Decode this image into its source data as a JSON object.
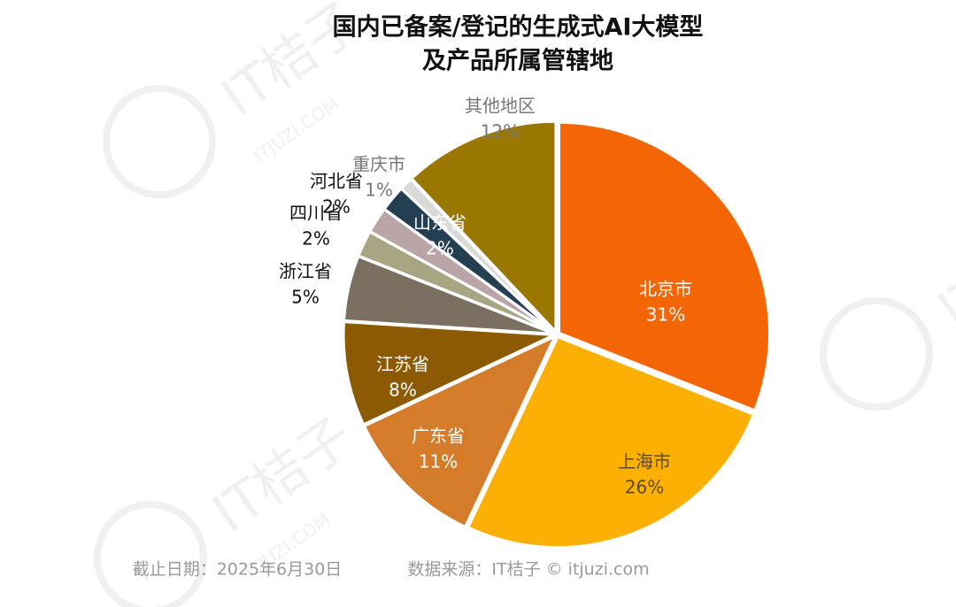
{
  "chart_data": {
    "type": "pie",
    "title": [
      "国内已备案/登记的生成式AI大模型",
      "及产品所属管辖地"
    ],
    "categories": [
      "北京市",
      "上海市",
      "广东省",
      "江苏省",
      "浙江省",
      "四川省",
      "山东省",
      "河北省",
      "重庆市",
      "其他地区"
    ],
    "values": [
      31,
      26,
      11,
      8,
      5,
      2,
      2,
      2,
      1,
      12
    ],
    "value_labels": [
      "31%",
      "26%",
      "11%",
      "8%",
      "5%",
      "2%",
      "2%",
      "2%",
      "1%",
      "12%"
    ],
    "colors": [
      "#f46506",
      "#fbb003",
      "#d57c2a",
      "#8c5a03",
      "#7a6f60",
      "#a8a582",
      "#b9a5a7",
      "#243e52",
      "#d9d9d9",
      "#9a7700"
    ],
    "footer": [
      "截止日期：2025年6月30日",
      "数据来源：IT桔子 © itjuzi.com"
    ],
    "watermark": [
      "IT桔子",
      "ITJUZI.COM"
    ]
  }
}
